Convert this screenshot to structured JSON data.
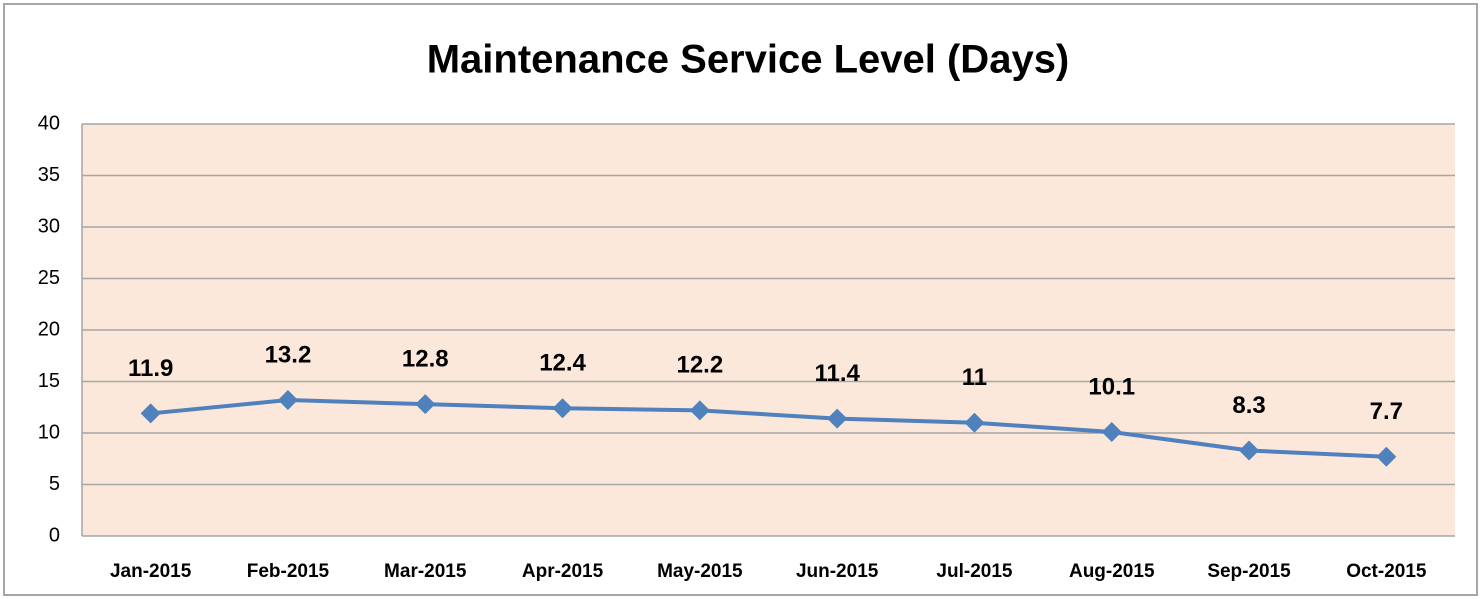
{
  "chart_data": {
    "type": "line",
    "title": "Maintenance Service Level (Days)",
    "categories": [
      "Jan-2015",
      "Feb-2015",
      "Mar-2015",
      "Apr-2015",
      "May-2015",
      "Jun-2015",
      "Jul-2015",
      "Aug-2015",
      "Sep-2015",
      "Oct-2015"
    ],
    "series": [
      {
        "name": "Days",
        "color": "#4f81bd",
        "values": [
          11.9,
          13.2,
          12.8,
          12.4,
          12.2,
          11.4,
          11,
          10.1,
          8.3,
          7.7
        ]
      }
    ],
    "ylim": [
      0,
      40
    ],
    "yticks": [
      0,
      5,
      10,
      15,
      20,
      25,
      30,
      35,
      40
    ],
    "grid": true,
    "plot_background": "#fce8da"
  }
}
